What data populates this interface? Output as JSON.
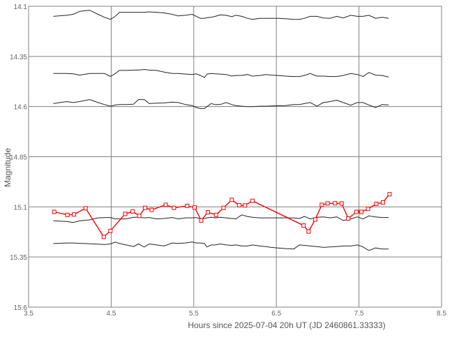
{
  "chart_data": {
    "type": "line",
    "title": "",
    "xlabel": "Hours since 2025-07-04 20h UT (JD 2460861.33333)",
    "ylabel": "Magnitude",
    "xlim": [
      3.5,
      8.5
    ],
    "ylim": [
      15.6,
      14.1
    ],
    "y_inverted": true,
    "grid": true,
    "x_ticks": [
      "3.5",
      "4.5",
      "5.5",
      "6.5",
      "7.5",
      "8.5"
    ],
    "y_ticks": [
      "14.1",
      "14.35",
      "14.6",
      "14.85",
      "15.1",
      "15.35",
      "15.6"
    ],
    "x_tick_values": [
      3.5,
      4.5,
      5.5,
      6.5,
      7.5,
      8.5
    ],
    "y_tick_values": [
      14.1,
      14.35,
      14.6,
      14.85,
      15.1,
      15.35,
      15.6
    ],
    "colors": {
      "grid": "#808080",
      "comparison": "#222222",
      "target": "#ff0000",
      "tick_text": "#666666"
    },
    "comparison_x": [
      3.8,
      3.96,
      4.04,
      4.12,
      4.24,
      4.34,
      4.42,
      4.49,
      4.55,
      4.6,
      4.68,
      4.77,
      4.83,
      4.9,
      4.96,
      5.05,
      5.14,
      5.24,
      5.31,
      5.4,
      5.48,
      5.53,
      5.58,
      5.63,
      5.66,
      5.71,
      5.76,
      5.82,
      5.89,
      5.96,
      6.01,
      6.08,
      6.15,
      6.21,
      6.3,
      6.37,
      6.44,
      6.52,
      6.61,
      6.71,
      6.78,
      6.84,
      6.91,
      6.99,
      7.07,
      7.15,
      7.23,
      7.31,
      7.4,
      7.48,
      7.55,
      7.62,
      7.7,
      7.78,
      7.86
    ],
    "series": [
      {
        "role": "comparison",
        "values": [
          14.15,
          14.145,
          14.14,
          14.125,
          14.12,
          14.14,
          14.155,
          14.165,
          14.15,
          14.13,
          14.13,
          14.13,
          14.13,
          14.13,
          14.128,
          14.13,
          14.133,
          14.14,
          14.148,
          14.145,
          14.14,
          14.15,
          14.16,
          14.16,
          14.157,
          14.155,
          14.15,
          14.143,
          14.145,
          14.152,
          14.145,
          14.15,
          14.16,
          14.165,
          14.16,
          14.16,
          14.16,
          14.16,
          14.162,
          14.165,
          14.165,
          14.16,
          14.15,
          14.15,
          14.158,
          14.16,
          14.15,
          14.158,
          14.145,
          14.15,
          14.15,
          14.145,
          14.16,
          14.155,
          14.16
        ]
      },
      {
        "role": "comparison",
        "values": [
          14.435,
          14.435,
          14.437,
          14.443,
          14.435,
          14.435,
          14.435,
          14.45,
          14.435,
          14.42,
          14.42,
          14.418,
          14.418,
          14.415,
          14.418,
          14.42,
          14.428,
          14.435,
          14.435,
          14.438,
          14.44,
          14.437,
          14.445,
          14.455,
          14.438,
          14.435,
          14.437,
          14.438,
          14.44,
          14.448,
          14.445,
          14.445,
          14.44,
          14.448,
          14.445,
          14.44,
          14.443,
          14.445,
          14.448,
          14.45,
          14.45,
          14.445,
          14.435,
          14.448,
          14.448,
          14.45,
          14.45,
          14.445,
          14.435,
          14.44,
          14.45,
          14.43,
          14.443,
          14.445,
          14.453
        ]
      },
      {
        "role": "comparison",
        "values": [
          14.585,
          14.575,
          14.58,
          14.575,
          14.565,
          14.58,
          14.59,
          14.598,
          14.592,
          14.59,
          14.59,
          14.588,
          14.565,
          14.565,
          14.585,
          14.583,
          14.582,
          14.578,
          14.58,
          14.59,
          14.595,
          14.605,
          14.61,
          14.61,
          14.6,
          14.585,
          14.59,
          14.59,
          14.58,
          14.59,
          14.595,
          14.598,
          14.6,
          14.6,
          14.598,
          14.598,
          14.597,
          14.596,
          14.595,
          14.59,
          14.59,
          14.585,
          14.58,
          14.598,
          14.58,
          14.575,
          14.568,
          14.58,
          14.593,
          14.58,
          14.58,
          14.592,
          14.605,
          14.59,
          14.592
        ]
      },
      {
        "role": "comparison",
        "values": [
          15.17,
          15.173,
          15.178,
          15.17,
          15.165,
          15.155,
          15.153,
          15.153,
          15.16,
          15.16,
          15.16,
          15.152,
          15.152,
          15.155,
          15.153,
          15.16,
          15.158,
          15.153,
          15.16,
          15.155,
          15.155,
          15.153,
          15.16,
          15.158,
          15.155,
          15.152,
          15.155,
          15.152,
          15.155,
          15.158,
          15.16,
          15.14,
          15.148,
          15.152,
          15.155,
          15.155,
          15.155,
          15.155,
          15.155,
          15.155,
          15.158,
          15.148,
          15.16,
          15.152,
          15.15,
          15.155,
          15.15,
          15.168,
          15.16,
          15.15,
          15.16,
          15.145,
          15.15,
          15.153,
          15.153
        ]
      },
      {
        "role": "comparison",
        "values": [
          15.283,
          15.28,
          15.28,
          15.282,
          15.284,
          15.286,
          15.288,
          15.285,
          15.276,
          15.282,
          15.29,
          15.298,
          15.285,
          15.3,
          15.285,
          15.29,
          15.295,
          15.28,
          15.282,
          15.28,
          15.275,
          15.28,
          15.28,
          15.283,
          15.3,
          15.29,
          15.29,
          15.285,
          15.29,
          15.292,
          15.29,
          15.295,
          15.295,
          15.29,
          15.295,
          15.298,
          15.302,
          15.305,
          15.308,
          15.31,
          15.29,
          15.292,
          15.295,
          15.298,
          15.302,
          15.3,
          15.298,
          15.295,
          15.295,
          15.29,
          15.3,
          15.318,
          15.305,
          15.31,
          15.31
        ]
      },
      {
        "role": "target",
        "x": [
          3.81,
          3.97,
          4.05,
          4.19,
          4.41,
          4.49,
          4.67,
          4.76,
          4.84,
          4.91,
          4.99,
          5.16,
          5.26,
          5.42,
          5.51,
          5.59,
          5.67,
          5.77,
          5.86,
          5.96,
          6.05,
          6.12,
          6.21,
          6.83,
          6.89,
          6.97,
          7.05,
          7.12,
          7.21,
          7.29,
          7.37,
          7.47,
          7.53,
          7.61,
          7.71,
          7.79,
          7.87
        ],
        "values": [
          15.125,
          15.14,
          15.138,
          15.107,
          15.25,
          15.22,
          15.135,
          15.123,
          15.145,
          15.105,
          15.115,
          15.09,
          15.105,
          15.095,
          15.103,
          15.168,
          15.127,
          15.14,
          15.105,
          15.065,
          15.092,
          15.093,
          15.07,
          15.193,
          15.223,
          15.163,
          15.09,
          15.083,
          15.082,
          15.083,
          15.158,
          15.125,
          15.125,
          15.11,
          15.085,
          15.078,
          15.037
        ]
      }
    ]
  }
}
